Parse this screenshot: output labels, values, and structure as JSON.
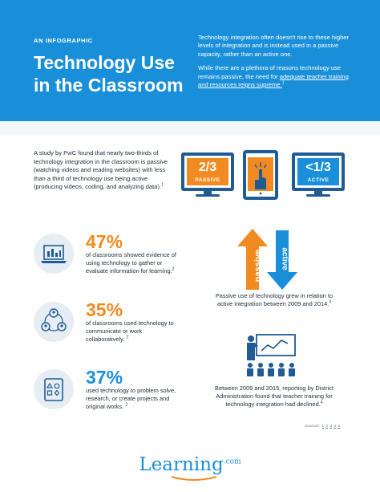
{
  "header": {
    "eyebrow": "AN INFOGRAPHIC",
    "title": "Technology Use in the Classroom",
    "intro_p1": "Technology integration often doesn't rise to these higher levels of integration and is instead used in a passive capacity, rather than an active one.",
    "intro_p2_start": "While there are a plethora of reasons technology use remains passive, the need for ",
    "intro_p2_link": "adequate teacher training and resources reigns supreme.",
    "intro_p2_sup": "1"
  },
  "study": {
    "text": "A study by PwC found that nearly two-thirds of technology integration in the classroom is passive (watching videos and reading websites) with less than a third of technology use being active (producing videos, coding, and analyzing data).",
    "sup": "1",
    "passive_fraction": "2/3",
    "passive_label": "PASSIVE",
    "active_fraction": "<1/3",
    "active_label": "ACTIVE"
  },
  "stats": [
    {
      "number": "47%",
      "desc": "of classrooms showed evidence of using technology to gather or evaluate information for learning.",
      "sup": "2",
      "icon": "laptop-chart-icon"
    },
    {
      "number": "35%",
      "desc": "of classrooms used technology to communicate or work collaboratively.",
      "sup": "2",
      "icon": "people-network-icon"
    },
    {
      "number": "37%",
      "desc": "used technology to problem solve, research, or create projects and original works.",
      "sup": "2",
      "icon": "shapes-tablet-icon"
    }
  ],
  "arrows": {
    "up_label": "passive",
    "down_label": "active",
    "caption": "Passive use of technology grew in relation to active integration between 2009 and 2014.",
    "sup": "3"
  },
  "training": {
    "caption": "Between 2009 and 2015, reporting by District Administration found that teacher training for technology integration had declined.",
    "sup": "4"
  },
  "sources": {
    "label": "Sources:",
    "items": [
      "1",
      "2",
      "3",
      "4",
      "5"
    ]
  },
  "logo": {
    "name": "Learning",
    "suffix": ".com"
  },
  "colors": {
    "blue": "#1a8fd9",
    "orange": "#f18b21",
    "navy": "#1f5b95"
  }
}
